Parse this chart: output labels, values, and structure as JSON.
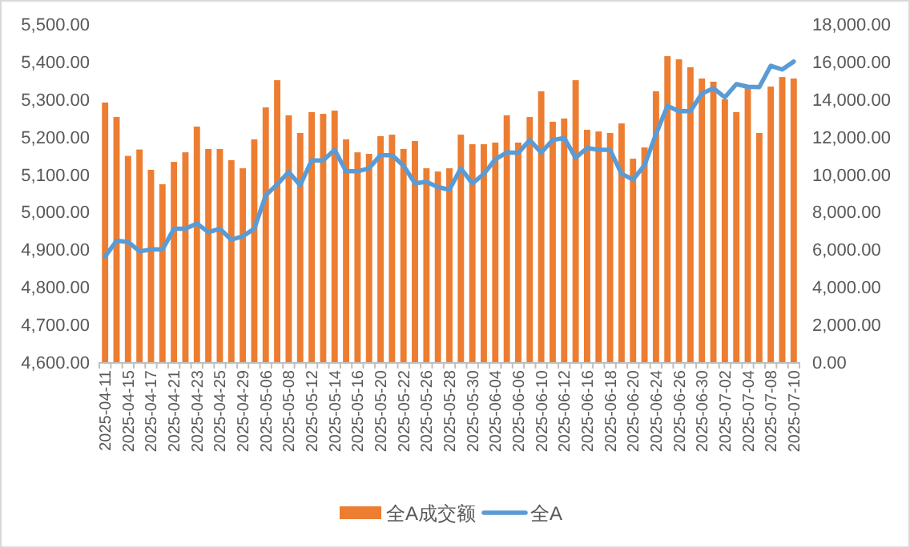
{
  "chart_data": {
    "type": "bar",
    "legend": "bottom",
    "categories": [
      "2025-04-11",
      null,
      "2025-04-15",
      null,
      "2025-04-17",
      null,
      "2025-04-21",
      null,
      "2025-04-23",
      null,
      "2025-04-25",
      null,
      "2025-04-29",
      null,
      "2025-05-06",
      null,
      "2025-05-08",
      null,
      "2025-05-12",
      null,
      "2025-05-14",
      null,
      "2025-05-16",
      null,
      "2025-05-20",
      null,
      "2025-05-22",
      null,
      "2025-05-26",
      null,
      "2025-05-28",
      null,
      "2025-05-30",
      null,
      "2025-06-04",
      null,
      "2025-06-06",
      null,
      "2025-06-10",
      null,
      "2025-06-12",
      null,
      "2025-06-16",
      null,
      "2025-06-18",
      null,
      "2025-06-20",
      null,
      "2025-06-24",
      null,
      "2025-06-26",
      null,
      "2025-06-30",
      null,
      "2025-07-02",
      null,
      "2025-07-04",
      null,
      "2025-07-08",
      null,
      "2025-07-10"
    ],
    "series": [
      {
        "name": "全A成交额",
        "axis": "y2",
        "color": "#ed7d31",
        "values": [
          13820,
          13050,
          10980,
          11320,
          10240,
          9470,
          10660,
          11170,
          12540,
          11350,
          11350,
          10750,
          10320,
          11860,
          13560,
          15010,
          13140,
          12200,
          13310,
          13220,
          13390,
          11860,
          11170,
          11090,
          12030,
          12110,
          11350,
          11770,
          10320,
          10150,
          10320,
          12110,
          11600,
          11600,
          11690,
          13140,
          11690,
          13050,
          14420,
          12800,
          12970,
          15010,
          12370,
          12280,
          12200,
          12710,
          10830,
          11430,
          14420,
          16290,
          16120,
          15700,
          15100,
          14930,
          13990,
          13310,
          14590,
          12200,
          14670,
          15180,
          15100
        ]
      },
      {
        "name": "全A",
        "type": "line",
        "color": "#5b9bd5",
        "values": [
          4881,
          4923,
          4920,
          4895,
          4900,
          4900,
          4955,
          4955,
          4969,
          4946,
          4955,
          4926,
          4935,
          4955,
          5044,
          5073,
          5106,
          5071,
          5137,
          5137,
          5165,
          5108,
          5108,
          5116,
          5151,
          5151,
          5123,
          5076,
          5080,
          5066,
          5059,
          5116,
          5076,
          5101,
          5140,
          5158,
          5157,
          5191,
          5158,
          5191,
          5197,
          5144,
          5170,
          5165,
          5165,
          5101,
          5086,
          5124,
          5207,
          5282,
          5268,
          5268,
          5315,
          5329,
          5305,
          5340,
          5333,
          5332,
          5389,
          5379,
          5400
        ]
      }
    ],
    "ylim": [
      4600,
      5500
    ],
    "yticks": [
      {
        "value": 4600,
        "label": "4,600.00"
      },
      {
        "value": 4700,
        "label": "4,700.00"
      },
      {
        "value": 4800,
        "label": "4,800.00"
      },
      {
        "value": 4900,
        "label": "4,900.00"
      },
      {
        "value": 5000,
        "label": "5,000.00"
      },
      {
        "value": 5100,
        "label": "5,100.00"
      },
      {
        "value": 5200,
        "label": "5,200.00"
      },
      {
        "value": 5300,
        "label": "5,300.00"
      },
      {
        "value": 5400,
        "label": "5,400.00"
      },
      {
        "value": 5500,
        "label": "5,500.00"
      }
    ],
    "y2lim": [
      0,
      18000
    ],
    "y2ticks": [
      {
        "value": 0,
        "label": "0.00"
      },
      {
        "value": 2000,
        "label": "2,000.00"
      },
      {
        "value": 4000,
        "label": "4,000.00"
      },
      {
        "value": 6000,
        "label": "6,000.00"
      },
      {
        "value": 8000,
        "label": "8,000.00"
      },
      {
        "value": 10000,
        "label": "10,000.00"
      },
      {
        "value": 12000,
        "label": "12,000.00"
      },
      {
        "value": 14000,
        "label": "14,000.00"
      },
      {
        "value": 16000,
        "label": "16,000.00"
      },
      {
        "value": 18000,
        "label": "18,000.00"
      }
    ]
  }
}
